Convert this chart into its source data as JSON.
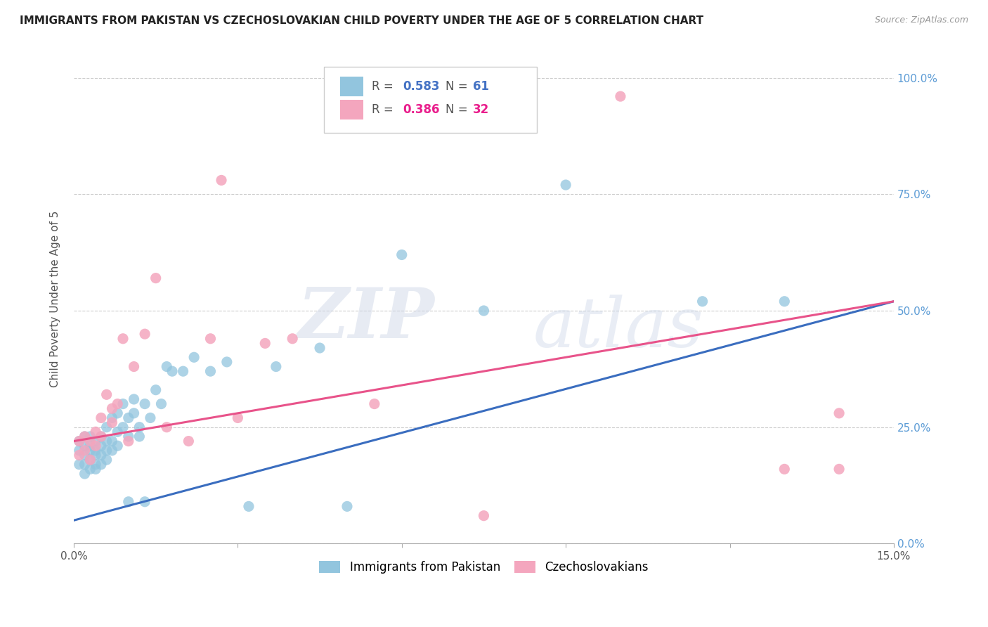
{
  "title": "IMMIGRANTS FROM PAKISTAN VS CZECHOSLOVAKIAN CHILD POVERTY UNDER THE AGE OF 5 CORRELATION CHART",
  "source": "Source: ZipAtlas.com",
  "ylabel": "Child Poverty Under the Age of 5",
  "x_min": 0.0,
  "x_max": 0.15,
  "y_min": 0.0,
  "y_max": 1.05,
  "x_ticks": [
    0.0,
    0.03,
    0.06,
    0.09,
    0.12,
    0.15
  ],
  "x_tick_labels": [
    "0.0%",
    "",
    "",
    "",
    "",
    "15.0%"
  ],
  "y_ticks": [
    0.0,
    0.25,
    0.5,
    0.75,
    1.0
  ],
  "y_tick_labels_right": [
    "0.0%",
    "25.0%",
    "50.0%",
    "75.0%",
    "100.0%"
  ],
  "blue_color": "#92c5de",
  "pink_color": "#f4a6be",
  "blue_R": 0.583,
  "blue_N": 61,
  "pink_R": 0.386,
  "pink_N": 32,
  "legend_label_blue": "Immigrants from Pakistan",
  "legend_label_pink": "Czechoslovakians",
  "watermark_zip": "ZIP",
  "watermark_atlas": "atlas",
  "blue_line_color": "#3a6dbf",
  "pink_line_color": "#e8538a",
  "blue_line_x0": 0.0,
  "blue_line_y0": 0.05,
  "blue_line_x1": 0.15,
  "blue_line_y1": 0.52,
  "pink_line_x0": 0.0,
  "pink_line_y0": 0.22,
  "pink_line_x1": 0.15,
  "pink_line_y1": 0.52,
  "grid_color": "#cccccc",
  "background_color": "#ffffff",
  "blue_scatter_x": [
    0.001,
    0.001,
    0.001,
    0.002,
    0.002,
    0.002,
    0.002,
    0.002,
    0.003,
    0.003,
    0.003,
    0.003,
    0.003,
    0.004,
    0.004,
    0.004,
    0.004,
    0.004,
    0.005,
    0.005,
    0.005,
    0.005,
    0.006,
    0.006,
    0.006,
    0.006,
    0.007,
    0.007,
    0.007,
    0.008,
    0.008,
    0.008,
    0.009,
    0.009,
    0.01,
    0.01,
    0.01,
    0.011,
    0.011,
    0.012,
    0.012,
    0.013,
    0.013,
    0.014,
    0.015,
    0.016,
    0.017,
    0.018,
    0.02,
    0.022,
    0.025,
    0.028,
    0.032,
    0.037,
    0.045,
    0.05,
    0.06,
    0.075,
    0.09,
    0.115,
    0.13
  ],
  "blue_scatter_y": [
    0.2,
    0.17,
    0.22,
    0.19,
    0.15,
    0.23,
    0.17,
    0.21,
    0.2,
    0.18,
    0.23,
    0.16,
    0.21,
    0.19,
    0.22,
    0.17,
    0.2,
    0.16,
    0.21,
    0.19,
    0.23,
    0.17,
    0.22,
    0.2,
    0.18,
    0.25,
    0.22,
    0.27,
    0.2,
    0.24,
    0.21,
    0.28,
    0.25,
    0.3,
    0.23,
    0.27,
    0.09,
    0.28,
    0.31,
    0.25,
    0.23,
    0.3,
    0.09,
    0.27,
    0.33,
    0.3,
    0.38,
    0.37,
    0.37,
    0.4,
    0.37,
    0.39,
    0.08,
    0.38,
    0.42,
    0.08,
    0.62,
    0.5,
    0.77,
    0.52,
    0.52
  ],
  "pink_scatter_x": [
    0.001,
    0.001,
    0.002,
    0.002,
    0.003,
    0.003,
    0.004,
    0.004,
    0.005,
    0.005,
    0.006,
    0.007,
    0.007,
    0.008,
    0.009,
    0.01,
    0.011,
    0.013,
    0.015,
    0.017,
    0.021,
    0.025,
    0.027,
    0.03,
    0.035,
    0.04,
    0.055,
    0.075,
    0.1,
    0.13,
    0.14,
    0.14
  ],
  "pink_scatter_y": [
    0.22,
    0.19,
    0.23,
    0.2,
    0.22,
    0.18,
    0.24,
    0.21,
    0.23,
    0.27,
    0.32,
    0.26,
    0.29,
    0.3,
    0.44,
    0.22,
    0.38,
    0.45,
    0.57,
    0.25,
    0.22,
    0.44,
    0.78,
    0.27,
    0.43,
    0.44,
    0.3,
    0.06,
    0.96,
    0.16,
    0.16,
    0.28
  ]
}
